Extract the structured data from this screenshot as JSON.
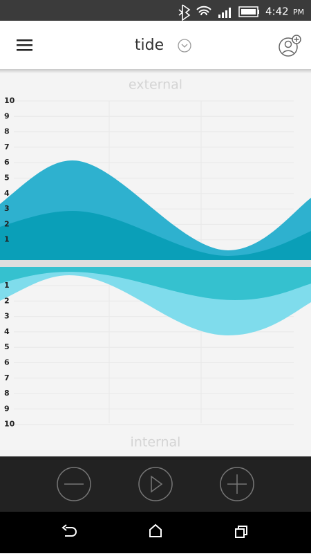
{
  "status_bar": {
    "time": "4:42",
    "meridiem": "PM"
  },
  "header": {
    "title": "tide"
  },
  "external_chart": {
    "label": "external",
    "yticks": [
      10,
      9,
      8,
      7,
      6,
      5,
      4,
      3,
      2,
      1
    ]
  },
  "internal_chart": {
    "label": "internal",
    "yticks": [
      1,
      2,
      3,
      4,
      5,
      6,
      7,
      8,
      9,
      10
    ]
  }
}
